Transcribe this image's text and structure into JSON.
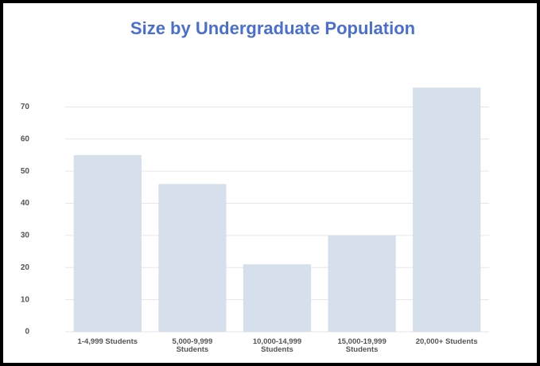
{
  "chart_data": {
    "type": "bar",
    "title": "Size by Undergraduate Population",
    "categories": [
      "1-4,999 Students",
      "5,000-9,999 Students",
      "10,000-14,999 Students",
      "15,000-19,999 Students",
      "20,000+ Students"
    ],
    "values": [
      55,
      46,
      21,
      30,
      76
    ],
    "color": "#d5e0ec",
    "ylim": [
      0,
      80
    ],
    "yticks": [
      0,
      10,
      20,
      30,
      40,
      50,
      60,
      70
    ],
    "grid": true
  }
}
